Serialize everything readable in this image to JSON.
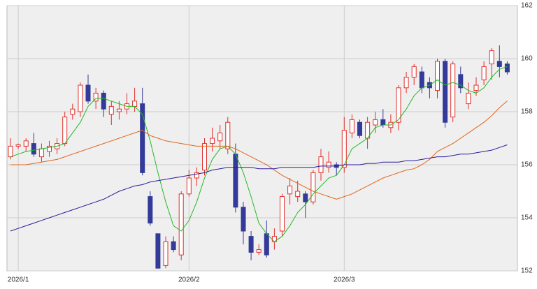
{
  "chart_data": {
    "type": "candlestick",
    "categories": [
      null,
      "2026/1",
      null,
      null,
      null,
      null,
      null,
      null,
      null,
      null,
      null,
      null,
      null,
      null,
      null,
      null,
      null,
      null,
      null,
      null,
      null,
      null,
      null,
      "2026/2",
      null,
      null,
      null,
      null,
      null,
      null,
      null,
      null,
      null,
      null,
      null,
      null,
      null,
      null,
      null,
      null,
      null,
      null,
      null,
      "2026/3",
      null,
      null,
      null,
      null,
      null,
      null,
      null,
      null,
      null,
      null,
      null,
      null,
      null,
      null,
      null,
      null,
      null,
      null,
      null,
      null,
      null
    ],
    "open": [
      156.3,
      156.7,
      156.7,
      156.8,
      156.3,
      156.5,
      156.6,
      156.8,
      157.9,
      158.0,
      159.0,
      158.4,
      158.7,
      157.9,
      158.0,
      158.1,
      158.2,
      158.3,
      154.8,
      153.4,
      152.2,
      153.1,
      152.6,
      154.9,
      155.5,
      155.8,
      156.8,
      156.9,
      156.6,
      156.4,
      154.4,
      153.3,
      152.7,
      153.4,
      153.1,
      153.5,
      154.9,
      154.8,
      154.9,
      154.6,
      155.7,
      155.9,
      156.0,
      155.9,
      157.2,
      157.6,
      157.0,
      157.5,
      157.7,
      157.4,
      157.6,
      158.9,
      159.3,
      159.5,
      159.1,
      158.8,
      159.9,
      157.8,
      159.4,
      158.3,
      158.8,
      159.2,
      159.8,
      159.9,
      159.8
    ],
    "high": [
      157.0,
      156.8,
      157.0,
      157.2,
      156.8,
      156.9,
      157.0,
      158.0,
      158.3,
      159.1,
      159.4,
      158.9,
      158.8,
      158.4,
      158.4,
      158.7,
      158.9,
      158.9,
      155.0,
      153.4,
      153.3,
      153.3,
      155.0,
      155.8,
      155.9,
      157.0,
      157.4,
      157.5,
      157.8,
      156.8,
      154.6,
      153.5,
      153.0,
      153.9,
      153.6,
      154.9,
      155.5,
      155.4,
      155.0,
      155.8,
      156.6,
      156.5,
      156.1,
      157.8,
      157.9,
      157.7,
      157.8,
      158.0,
      158.1,
      157.9,
      159.0,
      159.5,
      159.8,
      159.7,
      159.3,
      160.0,
      160.0,
      159.9,
      159.7,
      159.1,
      159.3,
      159.9,
      160.4,
      160.5,
      159.9
    ],
    "low": [
      156.2,
      156.6,
      156.5,
      156.3,
      156.1,
      156.3,
      156.4,
      156.7,
      157.7,
      157.8,
      158.3,
      158.1,
      157.8,
      157.5,
      157.7,
      157.9,
      158.0,
      155.6,
      153.7,
      152.1,
      152.1,
      152.7,
      152.4,
      154.8,
      155.2,
      155.6,
      156.5,
      156.6,
      156.4,
      154.2,
      153.0,
      152.4,
      152.6,
      152.5,
      152.8,
      153.3,
      154.5,
      154.6,
      154.0,
      154.5,
      155.4,
      155.7,
      155.6,
      155.7,
      157.0,
      157.0,
      156.6,
      157.2,
      157.4,
      157.2,
      157.3,
      158.7,
      159.0,
      158.7,
      158.5,
      158.5,
      157.4,
      157.6,
      158.7,
      158.1,
      158.6,
      159.0,
      159.2,
      159.3,
      159.4
    ],
    "close": [
      156.7,
      156.75,
      156.9,
      156.4,
      156.6,
      156.7,
      156.8,
      157.8,
      158.1,
      159.0,
      158.4,
      158.7,
      158.1,
      158.2,
      158.1,
      158.3,
      158.4,
      155.7,
      153.8,
      152.1,
      153.1,
      152.8,
      154.9,
      155.5,
      155.7,
      156.8,
      157.0,
      157.2,
      157.6,
      154.4,
      153.5,
      152.7,
      152.8,
      152.6,
      153.3,
      154.8,
      155.2,
      155.0,
      154.6,
      155.7,
      156.3,
      156.1,
      155.9,
      157.3,
      157.7,
      157.1,
      157.6,
      157.7,
      157.5,
      157.6,
      158.9,
      159.3,
      159.7,
      158.9,
      158.9,
      159.9,
      157.6,
      159.8,
      158.9,
      158.7,
      159.0,
      159.7,
      160.3,
      159.7,
      159.5
    ],
    "up_color": "#e0302c",
    "down_color": "#333a99",
    "lines": [
      {
        "color": "#22bb22",
        "values": [
          156.3,
          156.4,
          156.5,
          156.55,
          156.6,
          156.65,
          156.7,
          156.8,
          157.2,
          157.6,
          158.2,
          158.5,
          158.5,
          158.4,
          158.3,
          158.2,
          158.2,
          157.9,
          156.9,
          155.7,
          154.6,
          153.7,
          153.5,
          153.9,
          154.6,
          155.5,
          156.2,
          156.6,
          156.7,
          156.4,
          155.7,
          154.8,
          153.8,
          153.4,
          153.1,
          153.3,
          153.7,
          154.2,
          154.5,
          154.9,
          155.2,
          155.5,
          155.6,
          156.0,
          156.6,
          156.8,
          157.0,
          157.4,
          157.5,
          157.5,
          157.7,
          158.1,
          158.6,
          158.9,
          159.0,
          159.2,
          159.0,
          159.1,
          159.0,
          158.8,
          158.7,
          158.9,
          159.3,
          159.6,
          159.7
        ]
      },
      {
        "color": "#e0661a",
        "values": [
          156.0,
          156.0,
          156.0,
          156.05,
          156.1,
          156.15,
          156.2,
          156.3,
          156.4,
          156.5,
          156.6,
          156.7,
          156.8,
          156.9,
          157.0,
          157.1,
          157.2,
          157.3,
          157.1,
          157.0,
          156.9,
          156.85,
          156.8,
          156.75,
          156.7,
          156.7,
          156.7,
          156.7,
          156.7,
          156.6,
          156.45,
          156.3,
          156.15,
          156.0,
          155.8,
          155.6,
          155.45,
          155.3,
          155.15,
          155.0,
          154.9,
          154.8,
          154.7,
          154.8,
          154.9,
          155.05,
          155.2,
          155.35,
          155.5,
          155.6,
          155.7,
          155.8,
          155.85,
          156.0,
          156.2,
          156.5,
          156.65,
          156.8,
          157.0,
          157.2,
          157.4,
          157.6,
          157.85,
          158.15,
          158.4
        ]
      },
      {
        "color": "#2a1a99",
        "values": [
          153.5,
          153.6,
          153.7,
          153.8,
          153.9,
          154.0,
          154.1,
          154.2,
          154.3,
          154.4,
          154.5,
          154.6,
          154.7,
          154.85,
          155.0,
          155.1,
          155.2,
          155.25,
          155.35,
          155.4,
          155.45,
          155.5,
          155.55,
          155.6,
          155.65,
          155.7,
          155.8,
          155.85,
          155.9,
          155.9,
          155.9,
          155.9,
          155.85,
          155.85,
          155.85,
          155.9,
          155.9,
          155.9,
          155.9,
          155.9,
          155.95,
          155.95,
          155.95,
          156.0,
          156.0,
          156.0,
          156.05,
          156.05,
          156.1,
          156.1,
          156.1,
          156.15,
          156.15,
          156.2,
          156.25,
          156.3,
          156.3,
          156.35,
          156.4,
          156.4,
          156.45,
          156.5,
          156.55,
          156.65,
          156.75
        ]
      }
    ],
    "ylim": [
      152,
      162
    ],
    "yticks": [
      152,
      154,
      156,
      158,
      160,
      162
    ],
    "grid": true
  }
}
